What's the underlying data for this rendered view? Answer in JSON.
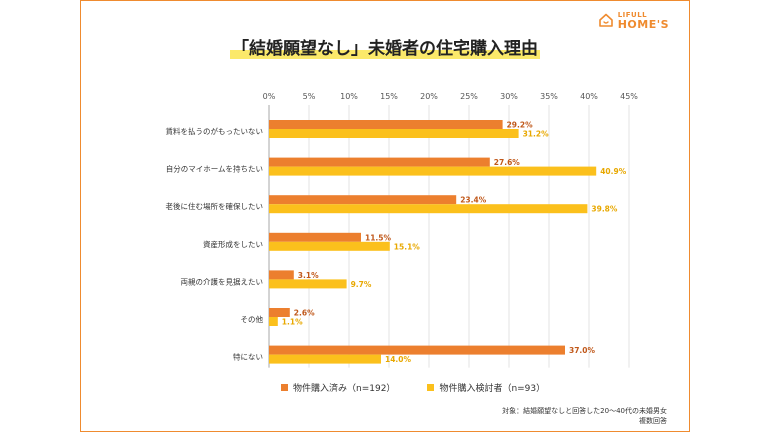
{
  "logo": {
    "line1": "LIFULL",
    "line2": "HOME'S"
  },
  "colors": {
    "series1": "#ec7f2e",
    "series2": "#fbc01c",
    "frame": "#ef8b2f",
    "grid": "#d0d0d0"
  },
  "chart_data": {
    "type": "bar",
    "orientation": "horizontal",
    "title": "「結婚願望なし」未婚者の住宅購入理由",
    "categories": [
      "賃料を払うのがもったいない",
      "自分のマイホームを持ちたい",
      "老後に住む場所を確保したい",
      "資産形成をしたい",
      "両親の介護を見据えたい",
      "その他",
      "特にない"
    ],
    "series": [
      {
        "name": "物件購入済み（n=192）",
        "values": [
          29.2,
          27.6,
          23.4,
          11.5,
          3.1,
          2.6,
          37.0
        ]
      },
      {
        "name": "物件購入検討者（n=93）",
        "values": [
          31.2,
          40.9,
          39.8,
          15.1,
          9.7,
          1.1,
          14.0
        ]
      }
    ],
    "xlim": [
      0,
      45
    ],
    "xticks": [
      "0%",
      "5%",
      "10%",
      "15%",
      "20%",
      "25%",
      "30%",
      "35%",
      "40%",
      "45%"
    ],
    "grid": true,
    "legend_position": "bottom"
  },
  "notes": {
    "line1": "対象：結婚願望なしと回答した20〜40代の未婚男女",
    "line2": "複数回答"
  }
}
